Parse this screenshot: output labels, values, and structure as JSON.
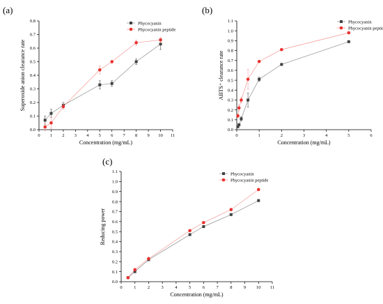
{
  "figure": {
    "panels": [
      {
        "label": "(a)"
      },
      {
        "label": "(b)"
      },
      {
        "label": "(c)"
      }
    ]
  },
  "chart_data": [
    {
      "type": "line",
      "panel": "(a)",
      "xlabel": "Concentration (mg/mL)",
      "ylabel": "Superoxide anion clearance rate",
      "xlim": [
        0,
        11
      ],
      "ylim": [
        0,
        0.8
      ],
      "xticks": [
        0,
        1,
        2,
        3,
        4,
        5,
        6,
        7,
        8,
        9,
        10,
        11
      ],
      "yticks": [
        0,
        0.1,
        0.2,
        0.3,
        0.4,
        0.5,
        0.6,
        0.7,
        0.8
      ],
      "legend_position": "top-right",
      "series": [
        {
          "name": "Phycocyanin",
          "color": "#404040",
          "marker": "square",
          "x": [
            0.5,
            1,
            2,
            5,
            6,
            8,
            10
          ],
          "y": [
            0.07,
            0.12,
            0.18,
            0.33,
            0.34,
            0.5,
            0.63
          ],
          "err": [
            0.03,
            0.03,
            0.02,
            0.03,
            0.02,
            0.02,
            0.04
          ]
        },
        {
          "name": "Phycocyanin peptide",
          "color": "#e8322f",
          "marker": "circle",
          "x": [
            0.5,
            1,
            2,
            5,
            6,
            8,
            10
          ],
          "y": [
            0.02,
            0.05,
            0.17,
            0.44,
            0.5,
            0.64,
            0.66
          ],
          "err": [
            0.03,
            0.04,
            0.02,
            0.03,
            0.01,
            0.02,
            0.02
          ]
        }
      ]
    },
    {
      "type": "line",
      "panel": "(b)",
      "xlabel": "Concentration (mg/mL)",
      "ylabel": "ABTS⁺ clearance rate",
      "xlim": [
        0,
        6
      ],
      "ylim": [
        0,
        1.1
      ],
      "xticks": [
        0,
        1,
        2,
        3,
        4,
        5,
        6
      ],
      "yticks": [
        0,
        0.1,
        0.2,
        0.3,
        0.4,
        0.5,
        0.6,
        0.7,
        0.8,
        0.9,
        1.0,
        1.1
      ],
      "legend_position": "top-right",
      "series": [
        {
          "name": "Phycocyanin",
          "color": "#404040",
          "marker": "square",
          "x": [
            0.05,
            0.1,
            0.2,
            0.5,
            1,
            2,
            5
          ],
          "y": [
            0.03,
            0.05,
            0.11,
            0.3,
            0.51,
            0.66,
            0.89
          ],
          "err": [
            0.01,
            0.01,
            0.02,
            0.07,
            0.02,
            0.01,
            0.01
          ]
        },
        {
          "name": "Phycocyanin peptide",
          "color": "#e8322f",
          "marker": "circle",
          "x": [
            0.05,
            0.1,
            0.2,
            0.5,
            1,
            2,
            5
          ],
          "y": [
            0.14,
            0.22,
            0.3,
            0.51,
            0.69,
            0.81,
            0.98
          ],
          "err": [
            0.02,
            0.03,
            0.03,
            0.1,
            0.01,
            0.01,
            0.01
          ]
        }
      ]
    },
    {
      "type": "line",
      "panel": "(c)",
      "xlabel": "Concentration (mg/mL)",
      "ylabel": "Reducing power",
      "xlim": [
        0,
        11
      ],
      "ylim": [
        0,
        1.1
      ],
      "xticks": [
        0,
        1,
        2,
        3,
        4,
        5,
        6,
        7,
        8,
        9,
        10,
        11
      ],
      "yticks": [
        0,
        0.1,
        0.2,
        0.3,
        0.4,
        0.5,
        0.6,
        0.7,
        0.8,
        0.9,
        1.0,
        1.1
      ],
      "legend_position": "top-right",
      "series": [
        {
          "name": "Phycocyanin",
          "color": "#404040",
          "marker": "square",
          "x": [
            0.5,
            1,
            2,
            5,
            6,
            8,
            10
          ],
          "y": [
            0.04,
            0.1,
            0.22,
            0.47,
            0.55,
            0.67,
            0.81
          ],
          "err": [
            0.005,
            0.01,
            0.01,
            0.01,
            0.01,
            0.01,
            0.01
          ]
        },
        {
          "name": "Phycocyanin peptide",
          "color": "#e8322f",
          "marker": "circle",
          "x": [
            0.5,
            1,
            2,
            5,
            6,
            8,
            10
          ],
          "y": [
            0.04,
            0.12,
            0.23,
            0.51,
            0.59,
            0.72,
            0.92
          ],
          "err": [
            0.005,
            0.01,
            0.01,
            0.01,
            0.01,
            0.01,
            0.01
          ]
        }
      ]
    }
  ]
}
